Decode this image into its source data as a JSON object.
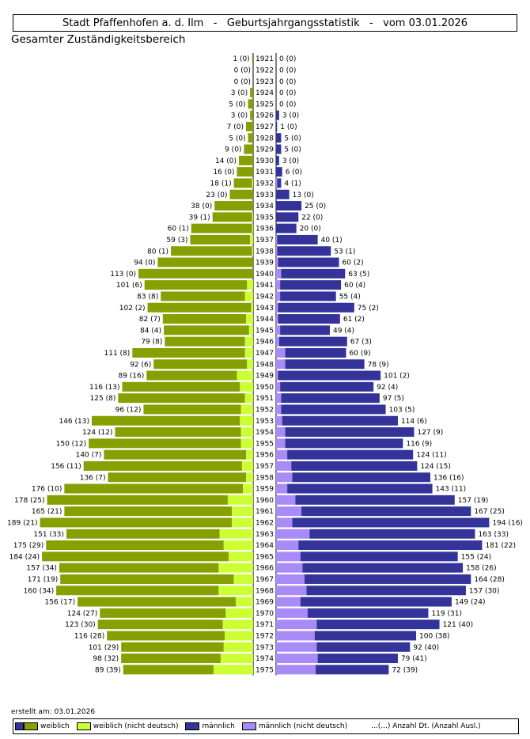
{
  "header": {
    "city": "Stadt Pfaffenhofen a. d. Ilm",
    "separator": "-",
    "report": "Geburtsjahrgangsstatistik",
    "date": "vom 03.01.2026",
    "scope": "Gesamter Zuständigkeitsbereich"
  },
  "footer": {
    "created": "erstellt am: 03.01.2026"
  },
  "legend": {
    "female": "weiblich",
    "female_foreign": "weiblich (nicht deutsch)",
    "male": "männlich",
    "male_foreign": "männlich (nicht deutsch)",
    "note": "...(...) Anzahl Dt. (Anzahl Ausl.)"
  },
  "colors": {
    "female": "#85a000",
    "female_foreign": "#ccff33",
    "male": "#333399",
    "male_foreign": "#a98bf8"
  },
  "chart_data": {
    "type": "bar",
    "orientation": "horizontal-population-pyramid",
    "title": "Stadt Pfaffenhofen a. d. Ilm - Geburtsjahrgangsstatistik - vom 03.01.2026",
    "subtitle": "Gesamter Zuständigkeitsbereich",
    "categories": [
      1921,
      1922,
      1923,
      1924,
      1925,
      1926,
      1927,
      1928,
      1929,
      1930,
      1931,
      1932,
      1933,
      1934,
      1935,
      1936,
      1937,
      1938,
      1939,
      1940,
      1941,
      1942,
      1943,
      1944,
      1945,
      1946,
      1947,
      1948,
      1949,
      1950,
      1951,
      1952,
      1953,
      1954,
      1955,
      1956,
      1957,
      1958,
      1959,
      1960,
      1961,
      1962,
      1963,
      1964,
      1965,
      1966,
      1967,
      1968,
      1969,
      1970,
      1971,
      1972,
      1973,
      1974,
      1975
    ],
    "series": [
      {
        "name": "weiblich",
        "total": [
          1,
          0,
          0,
          3,
          5,
          3,
          7,
          5,
          9,
          14,
          16,
          19,
          23,
          38,
          40,
          61,
          62,
          81,
          94,
          113,
          107,
          91,
          104,
          89,
          88,
          87,
          119,
          98,
          105,
          129,
          133,
          108,
          159,
          136,
          162,
          147,
          167,
          143,
          186,
          203,
          186,
          210,
          184,
          204,
          208,
          191,
          190,
          194,
          173,
          151,
          153,
          144,
          130,
          130,
          128
        ],
        "foreign": [
          0,
          0,
          0,
          0,
          0,
          0,
          0,
          0,
          0,
          0,
          0,
          1,
          0,
          0,
          1,
          1,
          3,
          1,
          0,
          0,
          6,
          8,
          2,
          7,
          4,
          8,
          8,
          6,
          16,
          13,
          8,
          12,
          13,
          12,
          12,
          7,
          11,
          7,
          10,
          25,
          21,
          21,
          33,
          29,
          24,
          34,
          19,
          34,
          17,
          27,
          30,
          28,
          29,
          32,
          39
        ]
      },
      {
        "name": "männlich",
        "total": [
          0,
          0,
          0,
          0,
          0,
          3,
          1,
          5,
          5,
          3,
          6,
          5,
          13,
          25,
          22,
          20,
          41,
          54,
          62,
          68,
          64,
          59,
          77,
          63,
          53,
          70,
          69,
          87,
          103,
          96,
          102,
          108,
          120,
          136,
          125,
          135,
          139,
          152,
          154,
          176,
          192,
          210,
          196,
          203,
          179,
          184,
          192,
          187,
          173,
          150,
          161,
          138,
          132,
          120,
          111
        ],
        "foreign": [
          0,
          0,
          0,
          0,
          0,
          0,
          0,
          0,
          0,
          0,
          0,
          1,
          0,
          0,
          0,
          0,
          1,
          1,
          2,
          5,
          4,
          4,
          2,
          2,
          4,
          3,
          9,
          9,
          2,
          4,
          5,
          5,
          6,
          9,
          9,
          11,
          15,
          16,
          11,
          19,
          25,
          16,
          33,
          22,
          24,
          26,
          28,
          30,
          24,
          31,
          40,
          38,
          40,
          41,
          39
        ]
      }
    ],
    "legend_position": "bottom"
  }
}
